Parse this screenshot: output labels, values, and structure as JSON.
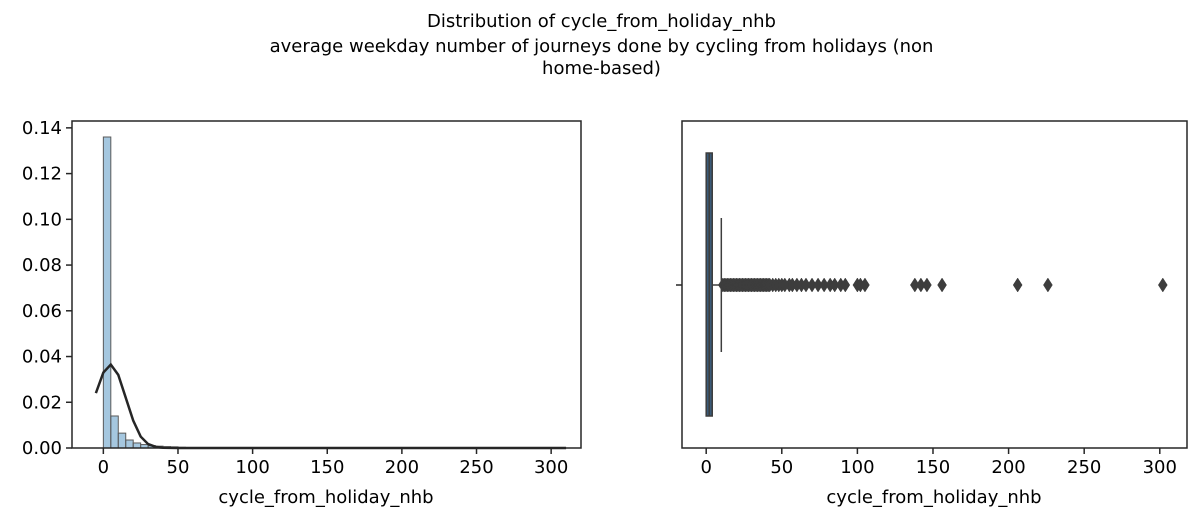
{
  "figure": {
    "title_lines": [
      "Distribution of cycle_from_holiday_nhb",
      "average weekday number of journeys done by cycling from holidays (non",
      "home-based)"
    ]
  },
  "chart_data": [
    {
      "type": "bar",
      "subtype": "histogram_with_kde",
      "xlabel": "cycle_from_holiday_nhb",
      "ylabel": "",
      "xlim": [
        -21,
        320
      ],
      "ylim": [
        0,
        0.143
      ],
      "xticks": [
        0,
        50,
        100,
        150,
        200,
        250,
        300
      ],
      "yticks": [
        0.0,
        0.02,
        0.04,
        0.06,
        0.08,
        0.1,
        0.12,
        0.14
      ],
      "ytick_labels": [
        "0.00",
        "0.02",
        "0.04",
        "0.06",
        "0.08",
        "0.10",
        "0.12",
        "0.14"
      ],
      "bin_width": 5,
      "bins": [
        {
          "start": 0,
          "end": 5,
          "density": 0.136
        },
        {
          "start": 5,
          "end": 10,
          "density": 0.014
        },
        {
          "start": 10,
          "end": 15,
          "density": 0.0065
        },
        {
          "start": 15,
          "end": 20,
          "density": 0.0035
        },
        {
          "start": 20,
          "end": 25,
          "density": 0.0022
        },
        {
          "start": 25,
          "end": 30,
          "density": 0.0015
        },
        {
          "start": 30,
          "end": 35,
          "density": 0.001
        },
        {
          "start": 35,
          "end": 40,
          "density": 0.0008
        },
        {
          "start": 40,
          "end": 45,
          "density": 0.0006
        },
        {
          "start": 45,
          "end": 50,
          "density": 0.0005
        },
        {
          "start": 50,
          "end": 55,
          "density": 0.0003
        },
        {
          "start": 55,
          "end": 60,
          "density": 0.0002
        }
      ],
      "kde": {
        "x": [
          -5,
          0,
          5,
          10,
          15,
          20,
          25,
          30,
          35,
          40,
          45,
          50,
          60,
          80,
          120,
          200,
          310
        ],
        "y": [
          0.024,
          0.033,
          0.0365,
          0.032,
          0.022,
          0.012,
          0.005,
          0.0017,
          0.0005,
          0.0001,
          3e-05,
          0.0,
          0.0,
          0.0,
          0.0,
          0.0,
          0.0
        ]
      },
      "grid": false,
      "bar_color": "#4c8fc0",
      "line_color": "#262626"
    },
    {
      "type": "box",
      "xlabel": "cycle_from_holiday_nhb",
      "xlim": [
        -16,
        318
      ],
      "xticks": [
        0,
        50,
        100,
        150,
        200,
        250,
        300
      ],
      "box": {
        "q1": 0,
        "median": 2,
        "q3": 4,
        "whisker_low": 0,
        "whisker_high": 10
      },
      "outliers": [
        11,
        12,
        13,
        14,
        15,
        16,
        17,
        18,
        19,
        20,
        21,
        22,
        23,
        24,
        25,
        26,
        27,
        28,
        29,
        30,
        31,
        32,
        33,
        34,
        35,
        36,
        37,
        38,
        39,
        40,
        41,
        42,
        44,
        46,
        48,
        50,
        52,
        55,
        57,
        60,
        63,
        66,
        70,
        74,
        78,
        82,
        85,
        89,
        92,
        100,
        102,
        105,
        138,
        142,
        146,
        156,
        206,
        226,
        302
      ],
      "grid": false,
      "box_color": "#3a5a78",
      "flier_color": "#3d3d3d"
    }
  ]
}
